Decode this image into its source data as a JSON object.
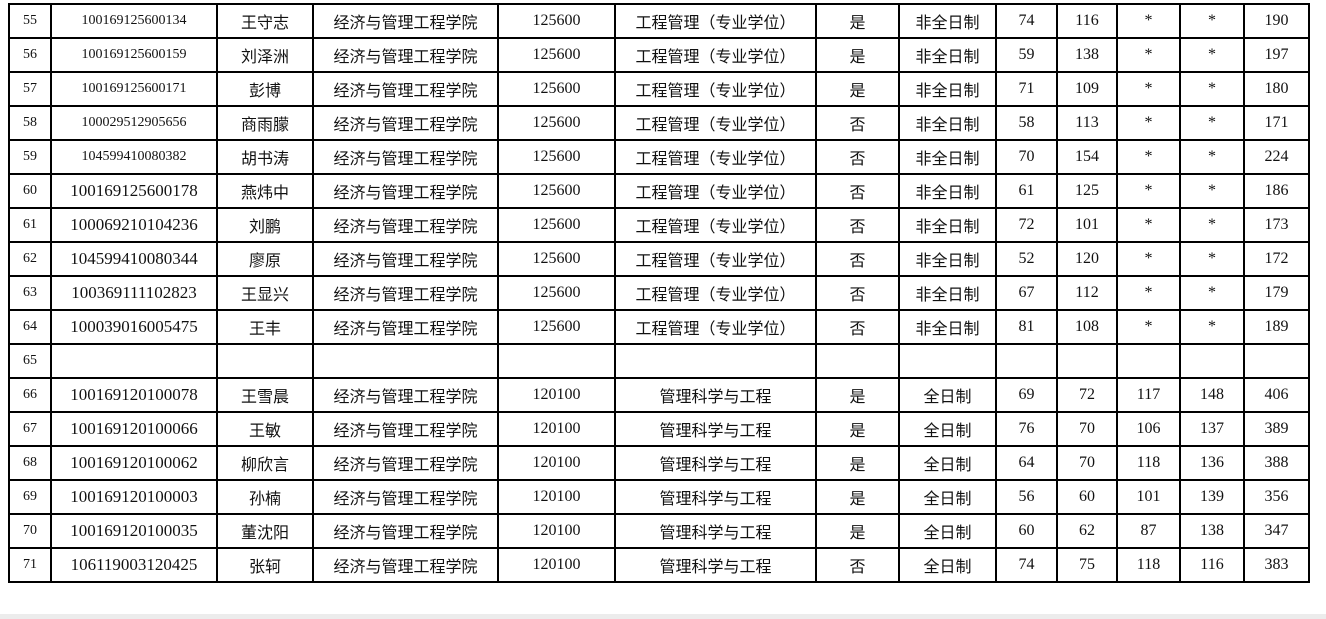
{
  "rows": [
    {
      "no": "55",
      "id": "100169125600134",
      "name": "王守志",
      "college": "经济与管理工程学院",
      "code": "125600",
      "major": "工程管理（专业学位）",
      "flag": "是",
      "mode": "非全日制",
      "s1": "74",
      "s2": "116",
      "s3": "*",
      "s4": "*",
      "total": "190",
      "small": true
    },
    {
      "no": "56",
      "id": "100169125600159",
      "name": "刘泽洲",
      "college": "经济与管理工程学院",
      "code": "125600",
      "major": "工程管理（专业学位）",
      "flag": "是",
      "mode": "非全日制",
      "s1": "59",
      "s2": "138",
      "s3": "*",
      "s4": "*",
      "total": "197",
      "small": true
    },
    {
      "no": "57",
      "id": "100169125600171",
      "name": "彭博",
      "college": "经济与管理工程学院",
      "code": "125600",
      "major": "工程管理（专业学位）",
      "flag": "是",
      "mode": "非全日制",
      "s1": "71",
      "s2": "109",
      "s3": "*",
      "s4": "*",
      "total": "180",
      "small": true
    },
    {
      "no": "58",
      "id": "100029512905656",
      "name": "商雨朦",
      "college": "经济与管理工程学院",
      "code": "125600",
      "major": "工程管理（专业学位）",
      "flag": "否",
      "mode": "非全日制",
      "s1": "58",
      "s2": "113",
      "s3": "*",
      "s4": "*",
      "total": "171",
      "small": true
    },
    {
      "no": "59",
      "id": "104599410080382",
      "name": "胡书涛",
      "college": "经济与管理工程学院",
      "code": "125600",
      "major": "工程管理（专业学位）",
      "flag": "否",
      "mode": "非全日制",
      "s1": "70",
      "s2": "154",
      "s3": "*",
      "s4": "*",
      "total": "224",
      "small": true
    },
    {
      "no": "60",
      "id": "100169125600178",
      "name": "燕炜中",
      "college": "经济与管理工程学院",
      "code": "125600",
      "major": "工程管理（专业学位）",
      "flag": "否",
      "mode": "非全日制",
      "s1": "61",
      "s2": "125",
      "s3": "*",
      "s4": "*",
      "total": "186"
    },
    {
      "no": "61",
      "id": "100069210104236",
      "name": "刘鹏",
      "college": "经济与管理工程学院",
      "code": "125600",
      "major": "工程管理（专业学位）",
      "flag": "否",
      "mode": "非全日制",
      "s1": "72",
      "s2": "101",
      "s3": "*",
      "s4": "*",
      "total": "173"
    },
    {
      "no": "62",
      "id": "104599410080344",
      "name": "廖原",
      "college": "经济与管理工程学院",
      "code": "125600",
      "major": "工程管理（专业学位）",
      "flag": "否",
      "mode": "非全日制",
      "s1": "52",
      "s2": "120",
      "s3": "*",
      "s4": "*",
      "total": "172"
    },
    {
      "no": "63",
      "id": "100369111102823",
      "name": "王显兴",
      "college": "经济与管理工程学院",
      "code": "125600",
      "major": "工程管理（专业学位）",
      "flag": "否",
      "mode": "非全日制",
      "s1": "67",
      "s2": "112",
      "s3": "*",
      "s4": "*",
      "total": "179"
    },
    {
      "no": "64",
      "id": "100039016005475",
      "name": "王丰",
      "college": "经济与管理工程学院",
      "code": "125600",
      "major": "工程管理（专业学位）",
      "flag": "否",
      "mode": "非全日制",
      "s1": "81",
      "s2": "108",
      "s3": "*",
      "s4": "*",
      "total": "189"
    },
    {
      "no": "65",
      "id": "",
      "name": "",
      "college": "",
      "code": "",
      "major": "",
      "flag": "",
      "mode": "",
      "s1": "",
      "s2": "",
      "s3": "",
      "s4": "",
      "total": ""
    },
    {
      "no": "66",
      "id": "100169120100078",
      "name": "王雪晨",
      "college": "经济与管理工程学院",
      "code": "120100",
      "major": "管理科学与工程",
      "flag": "是",
      "mode": "全日制",
      "s1": "69",
      "s2": "72",
      "s3": "117",
      "s4": "148",
      "total": "406"
    },
    {
      "no": "67",
      "id": "100169120100066",
      "name": "王敏",
      "college": "经济与管理工程学院",
      "code": "120100",
      "major": "管理科学与工程",
      "flag": "是",
      "mode": "全日制",
      "s1": "76",
      "s2": "70",
      "s3": "106",
      "s4": "137",
      "total": "389"
    },
    {
      "no": "68",
      "id": "100169120100062",
      "name": "柳欣言",
      "college": "经济与管理工程学院",
      "code": "120100",
      "major": "管理科学与工程",
      "flag": "是",
      "mode": "全日制",
      "s1": "64",
      "s2": "70",
      "s3": "118",
      "s4": "136",
      "total": "388"
    },
    {
      "no": "69",
      "id": "100169120100003",
      "name": "孙楠",
      "college": "经济与管理工程学院",
      "code": "120100",
      "major": "管理科学与工程",
      "flag": "是",
      "mode": "全日制",
      "s1": "56",
      "s2": "60",
      "s3": "101",
      "s4": "139",
      "total": "356"
    },
    {
      "no": "70",
      "id": "100169120100035",
      "name": "董沈阳",
      "college": "经济与管理工程学院",
      "code": "120100",
      "major": "管理科学与工程",
      "flag": "是",
      "mode": "全日制",
      "s1": "60",
      "s2": "62",
      "s3": "87",
      "s4": "138",
      "total": "347"
    },
    {
      "no": "71",
      "id": "106119003120425",
      "name": "张轲",
      "college": "经济与管理工程学院",
      "code": "120100",
      "major": "管理科学与工程",
      "flag": "否",
      "mode": "全日制",
      "s1": "74",
      "s2": "75",
      "s3": "118",
      "s4": "116",
      "total": "383"
    }
  ]
}
